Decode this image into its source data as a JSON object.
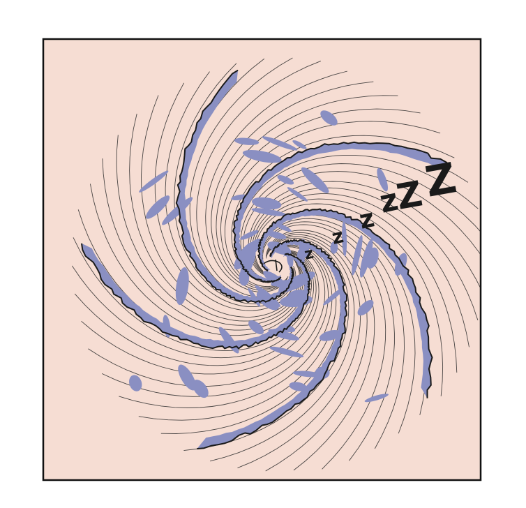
{
  "panel": {
    "background_color": "#f6ddd3",
    "band_color": "#8a8fc2",
    "ink_color": "#1a1a1a",
    "border_color": "#111111"
  },
  "sleep_marks": [
    "z",
    "z",
    "z",
    "z",
    "Z",
    "Z"
  ],
  "icons": [
    "spiral-vortex-icon",
    "sleep-z-icon"
  ]
}
